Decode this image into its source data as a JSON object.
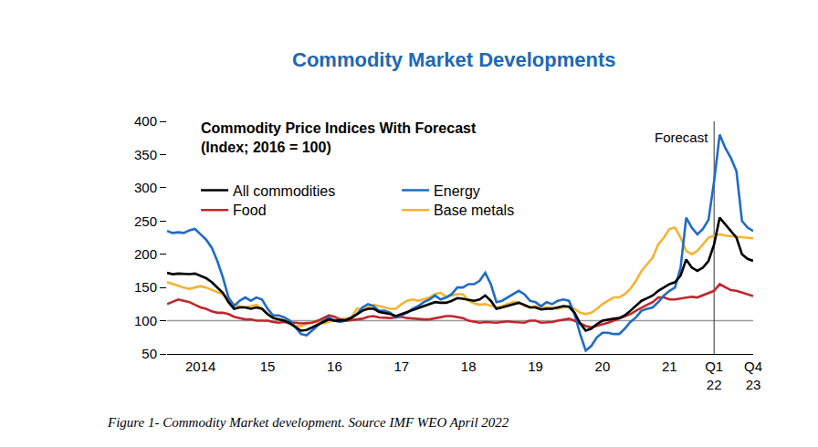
{
  "chart_data": {
    "type": "line",
    "title": "Commodity Market Developments",
    "subtitle": [
      "Commodity Price Indices With Forecast",
      "(Index; 2016 = 100)"
    ],
    "caption": "Figure 1- Commodity Market development. Source IMF WEO April 2022",
    "annotations": [
      {
        "text": "Forecast",
        "x": "Q1 22"
      }
    ],
    "hline": 100,
    "grid": false,
    "legend": "upper left",
    "ylim": [
      50,
      400
    ],
    "yticks": [
      50,
      100,
      150,
      200,
      250,
      300,
      350,
      400
    ],
    "categories": [
      null,
      null,
      null,
      null,
      null,
      null,
      "2014",
      null,
      null,
      null,
      null,
      null,
      null,
      null,
      null,
      null,
      null,
      null,
      "15",
      null,
      null,
      null,
      null,
      null,
      null,
      null,
      null,
      null,
      null,
      null,
      "16",
      null,
      null,
      null,
      null,
      null,
      null,
      null,
      null,
      null,
      null,
      null,
      "17",
      null,
      null,
      null,
      null,
      null,
      null,
      null,
      null,
      null,
      null,
      null,
      "18",
      null,
      null,
      null,
      null,
      null,
      null,
      null,
      null,
      null,
      null,
      null,
      "19",
      null,
      null,
      null,
      null,
      null,
      null,
      null,
      null,
      null,
      null,
      null,
      "20",
      null,
      null,
      null,
      null,
      null,
      null,
      null,
      null,
      null,
      null,
      null,
      "21",
      null,
      null,
      null,
      null,
      null,
      null,
      null,
      "Q1 22",
      null,
      null,
      null,
      null,
      null,
      null,
      "Q4 23"
    ],
    "series": [
      {
        "name": "All commodities",
        "color": "#000000",
        "values": [
          172,
          170,
          171,
          170,
          170,
          171,
          168,
          164,
          158,
          150,
          142,
          128,
          118,
          120,
          120,
          118,
          120,
          118,
          110,
          104,
          102,
          100,
          96,
          90,
          85,
          86,
          90,
          93,
          98,
          102,
          100,
          100,
          101,
          104,
          110,
          115,
          118,
          118,
          113,
          112,
          110,
          107,
          110,
          113,
          116,
          118,
          122,
          125,
          128,
          127,
          127,
          130,
          134,
          133,
          132,
          130,
          132,
          138,
          130,
          118,
          120,
          122,
          125,
          127,
          124,
          120,
          120,
          117,
          118,
          118,
          120,
          122,
          121,
          112,
          96,
          85,
          88,
          95,
          100,
          102,
          103,
          104,
          108,
          115,
          122,
          130,
          134,
          138,
          145,
          150,
          155,
          158,
          168,
          192,
          180,
          175,
          180,
          190,
          215,
          255,
          245,
          235,
          225,
          200,
          193,
          190
        ]
      },
      {
        "name": "Energy",
        "color": "#1f6cc4",
        "values": [
          235,
          232,
          233,
          232,
          236,
          238,
          230,
          222,
          210,
          190,
          165,
          135,
          122,
          130,
          135,
          130,
          135,
          132,
          118,
          108,
          108,
          105,
          100,
          90,
          80,
          78,
          85,
          92,
          100,
          105,
          100,
          98,
          100,
          105,
          110,
          120,
          125,
          122,
          115,
          115,
          112,
          105,
          108,
          112,
          118,
          122,
          128,
          132,
          138,
          132,
          135,
          140,
          150,
          150,
          155,
          155,
          160,
          172,
          155,
          128,
          130,
          135,
          140,
          145,
          140,
          130,
          128,
          122,
          128,
          125,
          130,
          132,
          130,
          110,
          80,
          55,
          62,
          75,
          82,
          82,
          80,
          80,
          88,
          98,
          105,
          115,
          118,
          120,
          128,
          138,
          145,
          150,
          180,
          255,
          240,
          230,
          238,
          252,
          310,
          380,
          360,
          345,
          325,
          250,
          240,
          235
        ]
      },
      {
        "name": "Food",
        "color": "#c1272d",
        "values": [
          125,
          128,
          132,
          130,
          128,
          124,
          120,
          118,
          114,
          112,
          112,
          110,
          106,
          104,
          102,
          102,
          100,
          100,
          100,
          98,
          97,
          98,
          98,
          97,
          96,
          96,
          97,
          100,
          104,
          108,
          106,
          102,
          100,
          101,
          102,
          103,
          106,
          107,
          105,
          104,
          104,
          105,
          106,
          104,
          103,
          102,
          102,
          102,
          104,
          106,
          107,
          107,
          106,
          104,
          100,
          98,
          97,
          98,
          97,
          97,
          98,
          99,
          98,
          98,
          97,
          100,
          100,
          97,
          97,
          98,
          100,
          102,
          103,
          100,
          96,
          92,
          90,
          92,
          95,
          97,
          100,
          103,
          106,
          110,
          115,
          120,
          124,
          128,
          135,
          135,
          132,
          132,
          133,
          135,
          136,
          135,
          138,
          142,
          145,
          155,
          150,
          146,
          145,
          142,
          140,
          137
        ]
      },
      {
        "name": "Base metals",
        "color": "#f5b335",
        "values": [
          158,
          155,
          152,
          150,
          148,
          150,
          152,
          150,
          146,
          143,
          140,
          132,
          125,
          122,
          120,
          122,
          124,
          118,
          110,
          105,
          102,
          100,
          95,
          92,
          92,
          95,
          98,
          98,
          96,
          98,
          102,
          102,
          103,
          105,
          118,
          118,
          120,
          124,
          122,
          120,
          118,
          118,
          125,
          130,
          132,
          130,
          132,
          135,
          140,
          142,
          136,
          138,
          140,
          140,
          130,
          126,
          124,
          125,
          122,
          120,
          122,
          125,
          128,
          128,
          122,
          120,
          122,
          120,
          120,
          120,
          118,
          120,
          122,
          118,
          112,
          110,
          112,
          118,
          125,
          130,
          135,
          135,
          140,
          148,
          160,
          175,
          185,
          195,
          215,
          225,
          238,
          240,
          225,
          205,
          200,
          205,
          215,
          225,
          228,
          230,
          228,
          227,
          226,
          225,
          225,
          224
        ]
      }
    ]
  }
}
